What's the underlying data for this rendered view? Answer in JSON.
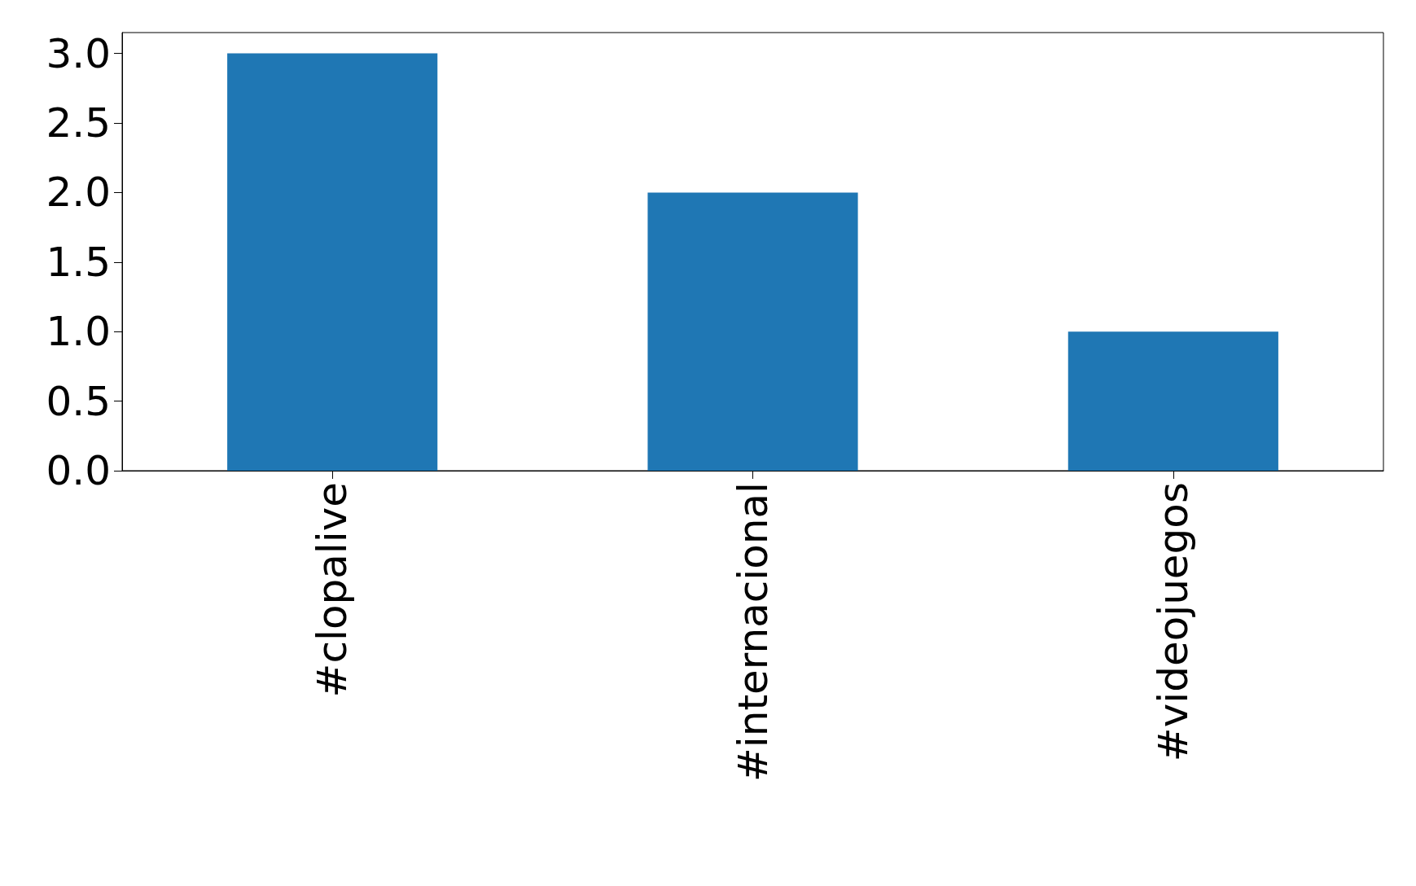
{
  "chart_data": {
    "type": "bar",
    "categories": [
      "#clopalive",
      "#internacional",
      "#videojuegos"
    ],
    "values": [
      3,
      2,
      1
    ],
    "color": "#1f77b4",
    "ylim": [
      0,
      3.15
    ],
    "yticks": [
      {
        "value": 0,
        "label": "0.0"
      },
      {
        "value": 0.5,
        "label": "0.5"
      },
      {
        "value": 1,
        "label": "1.0"
      },
      {
        "value": 1.5,
        "label": "1.5"
      },
      {
        "value": 2,
        "label": "2.0"
      },
      {
        "value": 2.5,
        "label": "2.5"
      },
      {
        "value": 3,
        "label": "3.0"
      }
    ],
    "grid": false
  }
}
